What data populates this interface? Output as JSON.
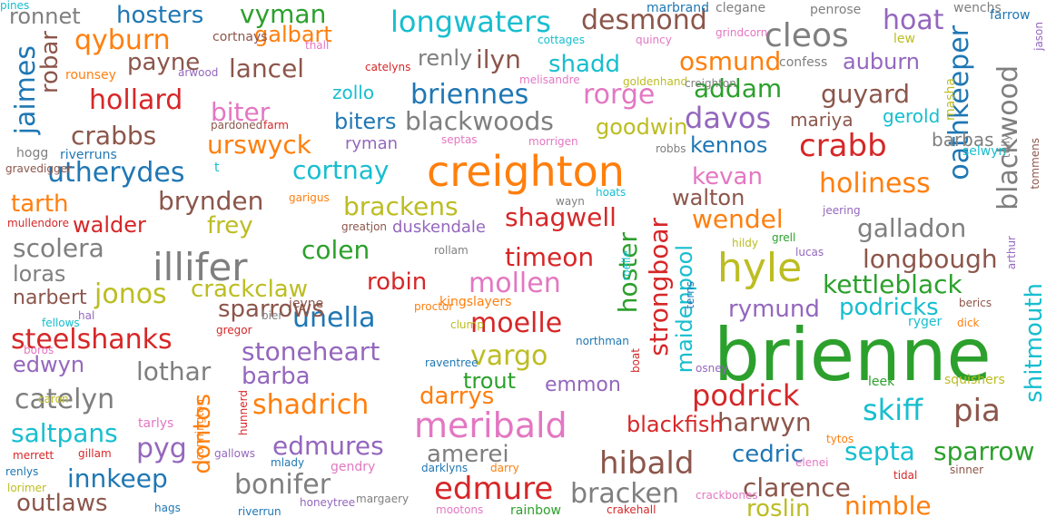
{
  "palette": {
    "orange": "#ff7f0e",
    "green": "#2ca02c",
    "red": "#d62728",
    "blue": "#1f77b4",
    "purple": "#9467bd",
    "brown": "#8c564b",
    "pink": "#e377c2",
    "gray": "#7f7f7f",
    "olive": "#bcbd22",
    "cyan": "#17becf"
  },
  "words": [
    {
      "text": "brienne",
      "color": "green"
    },
    {
      "text": "creighton",
      "color": "orange"
    },
    {
      "text": "illifer",
      "color": "gray"
    },
    {
      "text": "hyle",
      "color": "olive"
    },
    {
      "text": "meribald",
      "color": "pink"
    },
    {
      "text": "edmure",
      "color": "red"
    },
    {
      "text": "oathkeeper",
      "color": "blue"
    },
    {
      "text": "blackwood",
      "color": "gray"
    },
    {
      "text": "cleos",
      "color": "gray"
    },
    {
      "text": "longwaters",
      "color": "cyan"
    },
    {
      "text": "desmond",
      "color": "brown"
    },
    {
      "text": "qyburn",
      "color": "orange"
    },
    {
      "text": "jaimes",
      "color": "blue"
    },
    {
      "text": "hollard",
      "color": "red"
    },
    {
      "text": "crabbs",
      "color": "brown"
    },
    {
      "text": "utherydes",
      "color": "blue"
    },
    {
      "text": "tarth",
      "color": "orange"
    },
    {
      "text": "brynden",
      "color": "brown"
    },
    {
      "text": "scolera",
      "color": "gray"
    },
    {
      "text": "loras",
      "color": "gray"
    },
    {
      "text": "jonos",
      "color": "olive"
    },
    {
      "text": "steelshanks",
      "color": "red"
    },
    {
      "text": "catelyn",
      "color": "gray"
    },
    {
      "text": "lothar",
      "color": "gray"
    },
    {
      "text": "saltpans",
      "color": "cyan"
    },
    {
      "text": "innkeep",
      "color": "blue"
    },
    {
      "text": "outlaws",
      "color": "brown"
    },
    {
      "text": "pyg",
      "color": "purple"
    },
    {
      "text": "dontos",
      "color": "orange"
    },
    {
      "text": "shadrich",
      "color": "orange"
    },
    {
      "text": "bonifer",
      "color": "gray"
    },
    {
      "text": "edmures",
      "color": "purple"
    },
    {
      "text": "stoneheart",
      "color": "purple"
    },
    {
      "text": "unella",
      "color": "blue"
    },
    {
      "text": "robin",
      "color": "red"
    },
    {
      "text": "mollen",
      "color": "pink"
    },
    {
      "text": "moelle",
      "color": "red"
    },
    {
      "text": "vargo",
      "color": "olive"
    },
    {
      "text": "timeon",
      "color": "red"
    },
    {
      "text": "shagwell",
      "color": "red"
    },
    {
      "text": "brackens",
      "color": "olive"
    },
    {
      "text": "cortnay",
      "color": "cyan"
    },
    {
      "text": "urswyck",
      "color": "orange"
    },
    {
      "text": "biter",
      "color": "pink"
    },
    {
      "text": "lancel",
      "color": "brown"
    },
    {
      "text": "payne",
      "color": "brown"
    },
    {
      "text": "vyman",
      "color": "green"
    },
    {
      "text": "hosters",
      "color": "blue"
    },
    {
      "text": "ronnet",
      "color": "gray"
    },
    {
      "text": "galbart",
      "color": "orange"
    },
    {
      "text": "renly",
      "color": "gray"
    },
    {
      "text": "ilyn",
      "color": "brown"
    },
    {
      "text": "shadd",
      "color": "cyan"
    },
    {
      "text": "osmund",
      "color": "orange"
    },
    {
      "text": "briennes",
      "color": "blue"
    },
    {
      "text": "rorge",
      "color": "pink"
    },
    {
      "text": "addam",
      "color": "green"
    },
    {
      "text": "blackwoods",
      "color": "gray"
    },
    {
      "text": "davos",
      "color": "purple"
    },
    {
      "text": "kennos",
      "color": "blue"
    },
    {
      "text": "kevan",
      "color": "pink"
    },
    {
      "text": "crabb",
      "color": "red"
    },
    {
      "text": "holiness",
      "color": "orange"
    },
    {
      "text": "hoat",
      "color": "purple"
    },
    {
      "text": "auburn",
      "color": "purple"
    },
    {
      "text": "guyard",
      "color": "brown"
    },
    {
      "text": "walton",
      "color": "brown"
    },
    {
      "text": "wendel",
      "color": "orange"
    },
    {
      "text": "galladon",
      "color": "gray"
    },
    {
      "text": "longbough",
      "color": "brown"
    },
    {
      "text": "kettleblack",
      "color": "green"
    },
    {
      "text": "podricks",
      "color": "cyan"
    },
    {
      "text": "rymund",
      "color": "purple"
    },
    {
      "text": "shitmouth",
      "color": "cyan"
    },
    {
      "text": "podrick",
      "color": "red"
    },
    {
      "text": "harwyn",
      "color": "brown"
    },
    {
      "text": "skiff",
      "color": "cyan"
    },
    {
      "text": "pia",
      "color": "brown"
    },
    {
      "text": "septa",
      "color": "cyan"
    },
    {
      "text": "sparrow",
      "color": "green"
    },
    {
      "text": "cedric",
      "color": "blue"
    },
    {
      "text": "clarence",
      "color": "brown"
    },
    {
      "text": "nimble",
      "color": "orange"
    },
    {
      "text": "roslin",
      "color": "olive"
    },
    {
      "text": "bracken",
      "color": "gray"
    },
    {
      "text": "hibald",
      "color": "brown"
    },
    {
      "text": "amerei",
      "color": "gray"
    },
    {
      "text": "blackfish",
      "color": "red"
    },
    {
      "text": "darrys",
      "color": "orange"
    },
    {
      "text": "trout",
      "color": "green"
    },
    {
      "text": "emmon",
      "color": "purple"
    },
    {
      "text": "barba",
      "color": "purple"
    },
    {
      "text": "crackclaw",
      "color": "olive"
    },
    {
      "text": "sparrows",
      "color": "brown"
    },
    {
      "text": "frey",
      "color": "olive"
    },
    {
      "text": "walder",
      "color": "red"
    },
    {
      "text": "narbert",
      "color": "brown"
    },
    {
      "text": "edwyn",
      "color": "purple"
    },
    {
      "text": "robar",
      "color": "brown"
    },
    {
      "text": "colen",
      "color": "green"
    },
    {
      "text": "hoster",
      "color": "green"
    },
    {
      "text": "strongboar",
      "color": "red"
    },
    {
      "text": "maidenpool",
      "color": "cyan"
    },
    {
      "text": "goodwin",
      "color": "olive"
    },
    {
      "text": "biters",
      "color": "blue"
    },
    {
      "text": "zollo",
      "color": "cyan"
    },
    {
      "text": "mariya",
      "color": "brown"
    },
    {
      "text": "gerold",
      "color": "cyan"
    },
    {
      "text": "barbas",
      "color": "gray"
    },
    {
      "text": "ryman",
      "color": "purple"
    },
    {
      "text": "duskendale",
      "color": "purple"
    },
    {
      "text": "marbrand",
      "color": "blue"
    },
    {
      "text": "clegane",
      "color": "gray"
    },
    {
      "text": "penrose",
      "color": "gray"
    },
    {
      "text": "wenchs",
      "color": "gray"
    },
    {
      "text": "farrow",
      "color": "blue"
    },
    {
      "text": "jason",
      "color": "purple"
    },
    {
      "text": "cortnays",
      "color": "brown"
    },
    {
      "text": "thall",
      "color": "pink"
    },
    {
      "text": "cottages",
      "color": "cyan"
    },
    {
      "text": "grindcorn",
      "color": "pink"
    },
    {
      "text": "quincy",
      "color": "pink"
    },
    {
      "text": "lew",
      "color": "olive"
    },
    {
      "text": "confess",
      "color": "gray"
    },
    {
      "text": "rounsey",
      "color": "orange"
    },
    {
      "text": "arwood",
      "color": "purple"
    },
    {
      "text": "catelyns",
      "color": "red"
    },
    {
      "text": "melisandre",
      "color": "pink"
    },
    {
      "text": "goldenhand",
      "color": "olive"
    },
    {
      "text": "creighton",
      "color": "gray"
    },
    {
      "text": "masha",
      "color": "olive"
    },
    {
      "text": "pardoned",
      "color": "brown"
    },
    {
      "text": "farm",
      "color": "red"
    },
    {
      "text": "hogg",
      "color": "gray"
    },
    {
      "text": "riverruns",
      "color": "blue"
    },
    {
      "text": "septas",
      "color": "pink"
    },
    {
      "text": "morrigen",
      "color": "pink"
    },
    {
      "text": "robbs",
      "color": "gray"
    },
    {
      "text": "selwyn",
      "color": "cyan"
    },
    {
      "text": "tully",
      "color": "gray"
    },
    {
      "text": "tommens",
      "color": "brown"
    },
    {
      "text": "gravedigger",
      "color": "brown"
    },
    {
      "text": "t",
      "color": "cyan"
    },
    {
      "text": "garigus",
      "color": "orange"
    },
    {
      "text": "wayn",
      "color": "gray"
    },
    {
      "text": "hoats",
      "color": "cyan"
    },
    {
      "text": "jeering",
      "color": "purple"
    },
    {
      "text": "mullendore",
      "color": "red"
    },
    {
      "text": "greatjon",
      "color": "brown"
    },
    {
      "text": "hildy",
      "color": "olive"
    },
    {
      "text": "grell",
      "color": "green"
    },
    {
      "text": "lucas",
      "color": "purple"
    },
    {
      "text": "arthur",
      "color": "purple"
    },
    {
      "text": "rollam",
      "color": "gray"
    },
    {
      "text": "roelle",
      "color": "cyan"
    },
    {
      "text": "jeyne",
      "color": "brown"
    },
    {
      "text": "kingslayers",
      "color": "orange"
    },
    {
      "text": "proctor",
      "color": "orange"
    },
    {
      "text": "bier",
      "color": "gray"
    },
    {
      "text": "hal",
      "color": "purple"
    },
    {
      "text": "terns",
      "color": "blue"
    },
    {
      "text": "berics",
      "color": "brown"
    },
    {
      "text": "fellows",
      "color": "cyan"
    },
    {
      "text": "gregor",
      "color": "red"
    },
    {
      "text": "clump",
      "color": "olive"
    },
    {
      "text": "ryger",
      "color": "cyan"
    },
    {
      "text": "dick",
      "color": "orange"
    },
    {
      "text": "northman",
      "color": "blue"
    },
    {
      "text": "boros",
      "color": "pink"
    },
    {
      "text": "raventree",
      "color": "blue"
    },
    {
      "text": "boat",
      "color": "red"
    },
    {
      "text": "osney",
      "color": "purple"
    },
    {
      "text": "leek",
      "color": "green"
    },
    {
      "text": "squishers",
      "color": "olive"
    },
    {
      "text": "caron",
      "color": "olive"
    },
    {
      "text": "hunnerd",
      "color": "red"
    },
    {
      "text": "connington",
      "color": "orange"
    },
    {
      "text": "tarlys",
      "color": "pink"
    },
    {
      "text": "tytos",
      "color": "orange"
    },
    {
      "text": "merrett",
      "color": "red"
    },
    {
      "text": "gillam",
      "color": "red"
    },
    {
      "text": "gallows",
      "color": "purple"
    },
    {
      "text": "renlys",
      "color": "blue"
    },
    {
      "text": "mlady",
      "color": "blue"
    },
    {
      "text": "gendry",
      "color": "pink"
    },
    {
      "text": "darklyns",
      "color": "blue"
    },
    {
      "text": "darry",
      "color": "orange"
    },
    {
      "text": "elenei",
      "color": "pink"
    },
    {
      "text": "tidal",
      "color": "red"
    },
    {
      "text": "sinner",
      "color": "brown"
    },
    {
      "text": "lorimer",
      "color": "olive"
    },
    {
      "text": "hags",
      "color": "blue"
    },
    {
      "text": "honeytree",
      "color": "purple"
    },
    {
      "text": "margaery",
      "color": "gray"
    },
    {
      "text": "riverrun",
      "color": "blue"
    },
    {
      "text": "mootons",
      "color": "pink"
    },
    {
      "text": "rainbow",
      "color": "green"
    },
    {
      "text": "crakehall",
      "color": "red"
    },
    {
      "text": "crackbones",
      "color": "pink"
    },
    {
      "text": "pines",
      "color": "cyan"
    }
  ]
}
